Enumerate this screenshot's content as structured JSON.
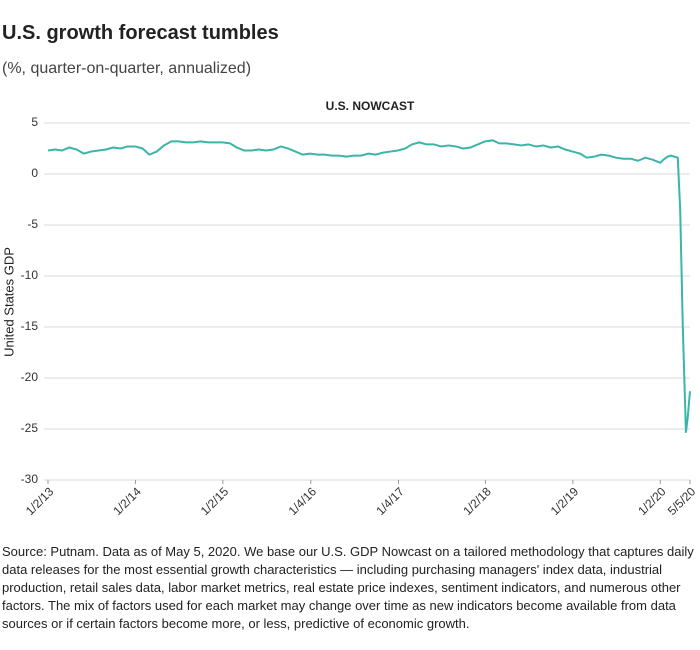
{
  "chart_data": {
    "type": "line",
    "title": "U.S. growth forecast tumbles",
    "subtitle": "(%, quarter-on-quarter, annualized)",
    "chart_title": "U.S. NOWCAST",
    "y_label": "United States GDP",
    "source": "Source: Putnam. Data as of May 5, 2020. We base our U.S. GDP Nowcast on a tailored methodology that captures daily data releases for the most essential growth characteristics — including purchasing managers' index data, industrial production, retail sales data, labor market metrics, real estate price indexes, sentiment indicators, and numerous other factors. The mix of factors used for each market may change over time as new indicators become available from data sources or if certain factors become more, or less, predictive of economic growth.",
    "color": "#3bb5a8",
    "grid": true,
    "ylim": [
      -30,
      5
    ],
    "yticks": [
      -30,
      -25,
      -20,
      -15,
      -10,
      -5,
      0,
      5
    ],
    "xlim": [
      "2013-01-02",
      "2020-05-05"
    ],
    "xticks": [
      {
        "value": "2013-01-02",
        "label": "1/2/13"
      },
      {
        "value": "2014-01-02",
        "label": "1/2/14"
      },
      {
        "value": "2015-01-02",
        "label": "1/2/15"
      },
      {
        "value": "2016-01-04",
        "label": "1/4/16"
      },
      {
        "value": "2017-01-04",
        "label": "1/4/17"
      },
      {
        "value": "2018-01-02",
        "label": "1/2/18"
      },
      {
        "value": "2019-01-02",
        "label": "1/2/19"
      },
      {
        "value": "2020-01-02",
        "label": "1/2/20"
      },
      {
        "value": "2020-05-05",
        "label": "5/5/20"
      }
    ],
    "x": [
      "2013-01-02",
      "2013-02-01",
      "2013-03-01",
      "2013-04-01",
      "2013-05-01",
      "2013-06-01",
      "2013-07-01",
      "2013-08-01",
      "2013-09-01",
      "2013-10-01",
      "2013-11-01",
      "2013-12-01",
      "2014-01-01",
      "2014-02-01",
      "2014-03-01",
      "2014-04-01",
      "2014-05-01",
      "2014-06-01",
      "2014-07-01",
      "2014-08-01",
      "2014-09-01",
      "2014-10-01",
      "2014-11-01",
      "2014-12-01",
      "2015-01-01",
      "2015-02-01",
      "2015-03-01",
      "2015-04-01",
      "2015-05-01",
      "2015-06-01",
      "2015-07-01",
      "2015-08-01",
      "2015-09-01",
      "2015-10-01",
      "2015-11-01",
      "2015-12-01",
      "2016-01-01",
      "2016-02-01",
      "2016-03-01",
      "2016-04-01",
      "2016-05-01",
      "2016-06-01",
      "2016-07-01",
      "2016-08-01",
      "2016-09-01",
      "2016-10-01",
      "2016-11-01",
      "2016-12-01",
      "2017-01-01",
      "2017-02-01",
      "2017-03-01",
      "2017-04-01",
      "2017-05-01",
      "2017-06-01",
      "2017-07-01",
      "2017-08-01",
      "2017-09-01",
      "2017-10-01",
      "2017-11-01",
      "2017-12-01",
      "2018-01-01",
      "2018-02-01",
      "2018-03-01",
      "2018-04-01",
      "2018-05-01",
      "2018-06-01",
      "2018-07-01",
      "2018-08-01",
      "2018-09-01",
      "2018-10-01",
      "2018-11-01",
      "2018-12-01",
      "2019-01-01",
      "2019-02-01",
      "2019-03-01",
      "2019-04-01",
      "2019-05-01",
      "2019-06-01",
      "2019-07-01",
      "2019-08-01",
      "2019-09-01",
      "2019-10-01",
      "2019-11-01",
      "2019-12-01",
      "2020-01-02",
      "2020-01-15",
      "2020-02-01",
      "2020-02-15",
      "2020-03-01",
      "2020-03-15",
      "2020-03-25",
      "2020-04-05",
      "2020-04-18",
      "2020-04-25",
      "2020-05-05"
    ],
    "values": [
      2.3,
      2.4,
      2.3,
      2.6,
      2.4,
      2.0,
      2.2,
      2.3,
      2.4,
      2.6,
      2.5,
      2.7,
      2.7,
      2.5,
      1.9,
      2.2,
      2.8,
      3.2,
      3.2,
      3.1,
      3.1,
      3.2,
      3.1,
      3.1,
      3.1,
      3.0,
      2.6,
      2.3,
      2.3,
      2.4,
      2.3,
      2.4,
      2.7,
      2.5,
      2.2,
      1.9,
      2.0,
      1.9,
      1.9,
      1.8,
      1.8,
      1.7,
      1.8,
      1.8,
      2.0,
      1.9,
      2.1,
      2.2,
      2.3,
      2.5,
      2.9,
      3.1,
      2.9,
      2.9,
      2.7,
      2.8,
      2.7,
      2.5,
      2.6,
      2.9,
      3.2,
      3.3,
      3.0,
      3.0,
      2.9,
      2.8,
      2.9,
      2.7,
      2.8,
      2.6,
      2.7,
      2.4,
      2.2,
      2.0,
      1.6,
      1.7,
      1.9,
      1.8,
      1.6,
      1.5,
      1.5,
      1.3,
      1.6,
      1.4,
      1.1,
      1.4,
      1.7,
      1.8,
      1.7,
      1.6,
      -3.5,
      -15,
      -25.3,
      -24,
      -21.3
    ]
  }
}
